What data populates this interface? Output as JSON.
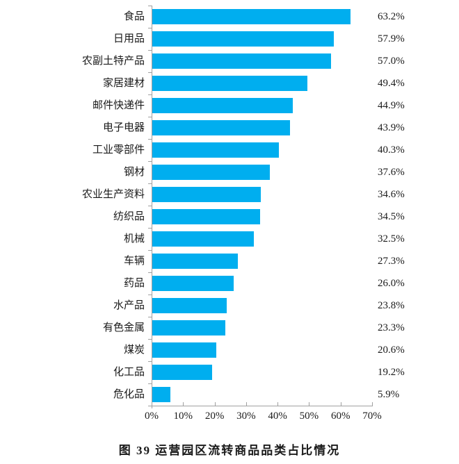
{
  "chart_data": {
    "type": "bar",
    "orientation": "horizontal",
    "title": "图 39  运营园区流转商品品类占比情况",
    "categories": [
      "食品",
      "日用品",
      "农副土特产品",
      "家居建材",
      "邮件快递件",
      "电子电器",
      "工业零部件",
      "钢材",
      "农业生产资料",
      "纺织品",
      "机械",
      "车辆",
      "药品",
      "水产品",
      "有色金属",
      "煤炭",
      "化工品",
      "危化品"
    ],
    "values": [
      63.2,
      57.9,
      57.0,
      49.4,
      44.9,
      43.9,
      40.3,
      37.6,
      34.6,
      34.5,
      32.5,
      27.3,
      26.0,
      23.8,
      23.3,
      20.6,
      19.2,
      5.9
    ],
    "data_labels": [
      "63.2%",
      "57.9%",
      "57.0%",
      "49.4%",
      "44.9%",
      "43.9%",
      "40.3%",
      "37.6%",
      "34.6%",
      "34.5%",
      "32.5%",
      "27.3%",
      "26.0%",
      "23.8%",
      "23.3%",
      "20.6%",
      "19.2%",
      "5.9%"
    ],
    "x_tick_labels": [
      "0%",
      "10%",
      "20%",
      "30%",
      "40%",
      "50%",
      "60%",
      "70%"
    ],
    "xlim": [
      0,
      70
    ],
    "xlabel": "",
    "ylabel": "",
    "grid": "off",
    "legend": "none",
    "bar_color": "#00AEEF",
    "axis_color": "#A0A0A0",
    "text_color": "#1a1a1a"
  }
}
